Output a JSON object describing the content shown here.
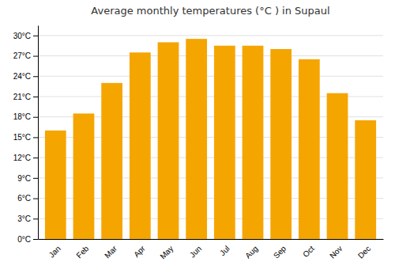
{
  "chart_data": {
    "type": "bar",
    "title": "Average monthly temperatures (°C ) in Supaul",
    "categories": [
      "Jan",
      "Feb",
      "Mar",
      "Apr",
      "May",
      "Jun",
      "Jul",
      "Aug",
      "Sep",
      "Oct",
      "Nov",
      "Dec"
    ],
    "values": [
      16.0,
      18.5,
      23.0,
      27.5,
      29.0,
      29.5,
      28.5,
      28.5,
      28.0,
      26.5,
      21.5,
      17.5
    ],
    "color": "#F5A500",
    "ylim": [
      0,
      31.5
    ],
    "yticks": [
      {
        "value": 0,
        "label": "0°C"
      },
      {
        "value": 3,
        "label": "3°C"
      },
      {
        "value": 6,
        "label": "6°C"
      },
      {
        "value": 9,
        "label": "9°C"
      },
      {
        "value": 12,
        "label": "12°C"
      },
      {
        "value": 15,
        "label": "15°C"
      },
      {
        "value": 18,
        "label": "18°C"
      },
      {
        "value": 21,
        "label": "21°C"
      },
      {
        "value": 24,
        "label": "24°C"
      },
      {
        "value": 27,
        "label": "27°C"
      },
      {
        "value": 30,
        "label": "30°C"
      }
    ],
    "grid": true
  }
}
